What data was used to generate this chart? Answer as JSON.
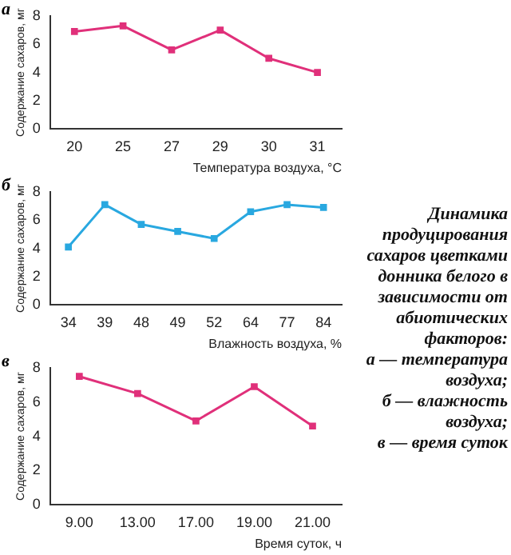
{
  "chart_data": [
    {
      "type": "line",
      "title": "а",
      "xlabel": "Температура воздуха, °C",
      "ylabel": "Содержание сахаров, мг",
      "categories": [
        "20",
        "25",
        "27",
        "29",
        "30",
        "31"
      ],
      "values": [
        6.9,
        7.3,
        5.6,
        7.0,
        5.0,
        4.0
      ],
      "color": "#e0307a",
      "ylim": [
        0,
        8
      ],
      "yticks": [
        0,
        2,
        4,
        6,
        8
      ],
      "grid": false,
      "legend": false,
      "marker": "square",
      "line_style": "solid"
    },
    {
      "type": "line",
      "title": "б",
      "xlabel": "Влажность воздуха, %",
      "ylabel": "Содержание сахаров, мг",
      "categories": [
        "34",
        "39",
        "48",
        "49",
        "52",
        "64",
        "77",
        "84"
      ],
      "values": [
        4.1,
        7.1,
        5.7,
        5.2,
        4.7,
        6.6,
        7.1,
        6.9
      ],
      "color": "#29a8e0",
      "ylim": [
        0,
        8
      ],
      "yticks": [
        0,
        2,
        4,
        6,
        8
      ],
      "grid": false,
      "legend": false,
      "marker": "square",
      "line_style": "solid"
    },
    {
      "type": "line",
      "title": "в",
      "xlabel": "Время суток, ч",
      "ylabel": "Содержание сахаров, мг",
      "categories": [
        "9.00",
        "13.00",
        "17.00",
        "19.00",
        "21.00"
      ],
      "values": [
        7.5,
        6.5,
        4.9,
        6.9,
        4.6
      ],
      "color": "#e0307a",
      "ylim": [
        0,
        8
      ],
      "yticks": [
        0,
        2,
        4,
        6,
        8
      ],
      "grid": false,
      "legend": false,
      "marker": "square",
      "line_style": "solid"
    },
    {
      "type": "other",
      "title": "Динамика продуцирования сахаров цветками донника белого в зависимости от абиотических факторов:",
      "annotations": [
        "а — температура воздуха;",
        "б — влажность воздуха;",
        "в — время суток"
      ]
    }
  ]
}
